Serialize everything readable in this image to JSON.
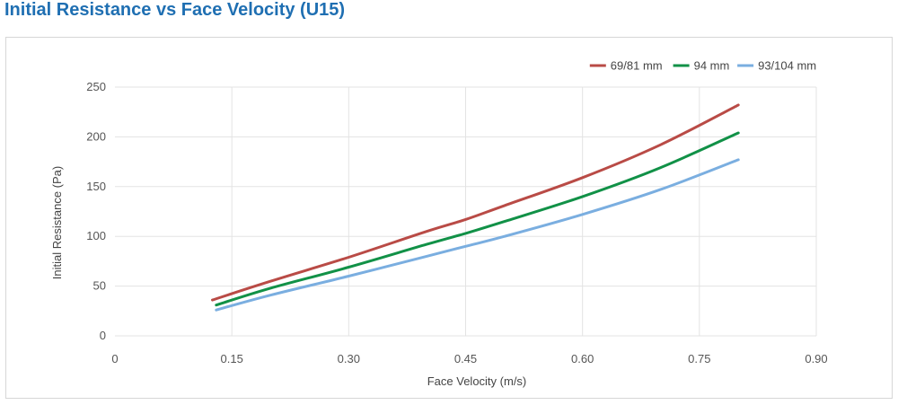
{
  "title": "Initial Resistance vs Face Velocity (U15)",
  "chart_data": {
    "type": "line",
    "title": "Initial Resistance vs Face Velocity (U15)",
    "xlabel": "Face Velocity (m/s)",
    "ylabel": "Initial Resistance (Pa)",
    "xlim": [
      0,
      0.9
    ],
    "ylim": [
      0,
      250
    ],
    "xticks": [
      "0",
      "0.15",
      "0.30",
      "0.45",
      "0.60",
      "0.75",
      "0.90"
    ],
    "yticks": [
      "0",
      "50",
      "100",
      "150",
      "200",
      "250"
    ],
    "grid": true,
    "legend_position": "top-right",
    "series": [
      {
        "name": "69/81 mm",
        "color": "#b94b46",
        "x": [
          0.125,
          0.2,
          0.3,
          0.4,
          0.45,
          0.5,
          0.6,
          0.7,
          0.8
        ],
        "y": [
          36,
          55,
          79,
          105,
          117,
          131,
          159,
          192,
          232
        ]
      },
      {
        "name": "94 mm",
        "color": "#119147",
        "x": [
          0.13,
          0.2,
          0.3,
          0.4,
          0.45,
          0.5,
          0.6,
          0.7,
          0.8
        ],
        "y": [
          31,
          48,
          69,
          92,
          103,
          115,
          140,
          169,
          204
        ]
      },
      {
        "name": "93/104 mm",
        "color": "#7aaee0",
        "x": [
          0.13,
          0.2,
          0.3,
          0.4,
          0.45,
          0.5,
          0.6,
          0.7,
          0.8
        ],
        "y": [
          26,
          41,
          60,
          80,
          90,
          100,
          122,
          147,
          177
        ]
      }
    ]
  }
}
